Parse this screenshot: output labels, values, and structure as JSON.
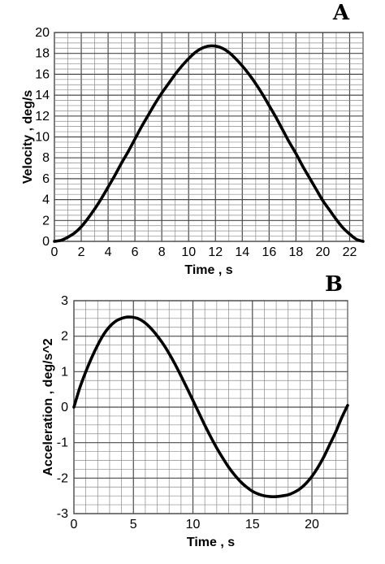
{
  "chart_data": [
    {
      "type": "line",
      "panel_letter": "A",
      "xlabel": "Time , s",
      "ylabel": "Velocity , deg/s",
      "xlim": [
        0,
        23
      ],
      "ylim": [
        0,
        20
      ],
      "xticks": [
        "0",
        "2",
        "4",
        "6",
        "8",
        "10",
        "12",
        "14",
        "16",
        "18",
        "20",
        "22"
      ],
      "yticks": [
        "0",
        "2",
        "4",
        "6",
        "8",
        "10",
        "12",
        "14",
        "16",
        "18",
        "20"
      ],
      "grid": true,
      "x": [
        0,
        0.5,
        1,
        1.5,
        2,
        2.5,
        3,
        3.5,
        4,
        4.5,
        5,
        5.5,
        6,
        6.5,
        7,
        7.5,
        8,
        8.5,
        9,
        9.5,
        10,
        10.5,
        11,
        11.5,
        12,
        12.5,
        13,
        13.5,
        14,
        14.5,
        15,
        15.5,
        16,
        16.5,
        17,
        17.5,
        18,
        18.5,
        19,
        19.5,
        20,
        20.5,
        21,
        21.5,
        22,
        22.5,
        23
      ],
      "y": [
        0.0,
        0.1,
        0.4,
        0.8,
        1.4,
        2.2,
        3.1,
        4.1,
        5.2,
        6.3,
        7.5,
        8.6,
        9.8,
        11.0,
        12.1,
        13.2,
        14.2,
        15.1,
        16.0,
        16.8,
        17.5,
        18.1,
        18.5,
        18.7,
        18.7,
        18.5,
        18.1,
        17.5,
        16.8,
        16.0,
        15.1,
        14.1,
        13.0,
        11.9,
        10.7,
        9.5,
        8.4,
        7.2,
        6.1,
        5.0,
        3.9,
        3.0,
        2.1,
        1.3,
        0.7,
        0.2,
        0.0
      ]
    },
    {
      "type": "line",
      "panel_letter": "B",
      "xlabel": "Time , s",
      "ylabel": "Acceleration , deg/s^2",
      "xlim": [
        0,
        23
      ],
      "ylim": [
        -3,
        3
      ],
      "xticks": [
        "0",
        "5",
        "10",
        "15",
        "20"
      ],
      "yticks": [
        "-3",
        "-2",
        "-1",
        "0",
        "1",
        "2",
        "3"
      ],
      "grid": true,
      "x": [
        0,
        0.5,
        1,
        1.5,
        2,
        2.5,
        3,
        3.5,
        4,
        4.5,
        5,
        5.5,
        6,
        6.5,
        7,
        7.5,
        8,
        8.5,
        9,
        9.5,
        10,
        10.5,
        11,
        11.5,
        12,
        12.5,
        13,
        13.5,
        14,
        14.5,
        15,
        15.5,
        16,
        16.5,
        17,
        17.5,
        18,
        18.5,
        19,
        19.5,
        20,
        20.5,
        21,
        21.5,
        22,
        22.5,
        23
      ],
      "y": [
        0.0,
        0.55,
        1.0,
        1.4,
        1.75,
        2.05,
        2.27,
        2.42,
        2.5,
        2.54,
        2.53,
        2.48,
        2.37,
        2.21,
        2.01,
        1.78,
        1.51,
        1.21,
        0.88,
        0.54,
        0.19,
        -0.16,
        -0.51,
        -0.84,
        -1.15,
        -1.43,
        -1.69,
        -1.91,
        -2.1,
        -2.25,
        -2.37,
        -2.45,
        -2.5,
        -2.52,
        -2.52,
        -2.5,
        -2.47,
        -2.4,
        -2.3,
        -2.15,
        -1.95,
        -1.7,
        -1.4,
        -1.05,
        -0.7,
        -0.3,
        0.05
      ]
    }
  ]
}
